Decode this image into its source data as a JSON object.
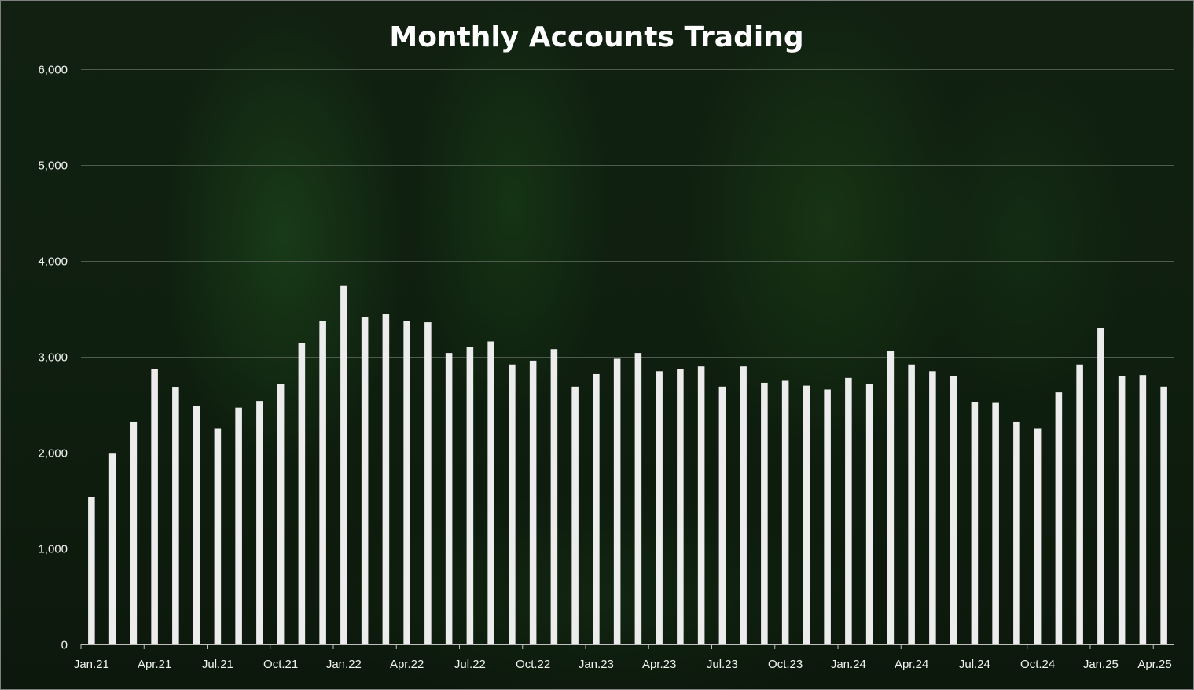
{
  "chart_data": {
    "type": "bar",
    "title": "Monthly Accounts Trading",
    "xlabel": "",
    "ylabel": "",
    "ylim": [
      0,
      6000
    ],
    "y_ticks": [
      "0",
      "1,000",
      "2,000",
      "3,000",
      "4,000",
      "5,000",
      "6,000"
    ],
    "y_tick_values": [
      0,
      1000,
      2000,
      3000,
      4000,
      5000,
      6000
    ],
    "x_tick_labels": [
      "Jan.21",
      "Apr.21",
      "Jul.21",
      "Oct.21",
      "Jan.22",
      "Apr.22",
      "Jul.22",
      "Oct.22",
      "Jan.23",
      "Apr.23",
      "Jul.23",
      "Oct.23",
      "Jan.24",
      "Apr.24",
      "Jul.24",
      "Oct.24",
      "Jan.25",
      "Apr.25"
    ],
    "categories": [
      "Jan.21",
      "Feb.21",
      "Mar.21",
      "Apr.21",
      "May.21",
      "Jun.21",
      "Jul.21",
      "Aug.21",
      "Sep.21",
      "Oct.21",
      "Nov.21",
      "Dec.21",
      "Jan.22",
      "Feb.22",
      "Mar.22",
      "Apr.22",
      "May.22",
      "Jun.22",
      "Jul.22",
      "Aug.22",
      "Sep.22",
      "Oct.22",
      "Nov.22",
      "Dec.22",
      "Jan.23",
      "Feb.23",
      "Mar.23",
      "Apr.23",
      "May.23",
      "Jun.23",
      "Jul.23",
      "Aug.23",
      "Sep.23",
      "Oct.23",
      "Nov.23",
      "Dec.23",
      "Jan.24",
      "Feb.24",
      "Mar.24",
      "Apr.24",
      "May.24",
      "Jun.24",
      "Jul.24",
      "Aug.24",
      "Sep.24",
      "Oct.24",
      "Nov.24",
      "Dec.24",
      "Jan.25",
      "Feb.25",
      "Mar.25",
      "Apr.25"
    ],
    "values": [
      1540,
      1990,
      2320,
      2870,
      2680,
      2490,
      2250,
      2470,
      2540,
      2720,
      3140,
      3370,
      3740,
      3410,
      3450,
      3370,
      3360,
      3040,
      3100,
      3160,
      2920,
      2960,
      3080,
      2690,
      2820,
      2980,
      3040,
      2850,
      2870,
      2900,
      2690,
      2900,
      2730,
      2750,
      2700,
      2660,
      2780,
      2720,
      3060,
      2920,
      2850,
      2800,
      2530,
      2520,
      2320,
      2250,
      2630,
      2920,
      3300,
      2800,
      2810,
      2690
    ],
    "grid": true,
    "legend": "none",
    "colors": {
      "bar": "#ececec",
      "grid": "#4d5a4d",
      "axis": "#bfbfbf",
      "text": "#f2f2f2",
      "title": "#ffffff",
      "background": "#0f1f0f",
      "border": "#7f7f7f"
    }
  }
}
